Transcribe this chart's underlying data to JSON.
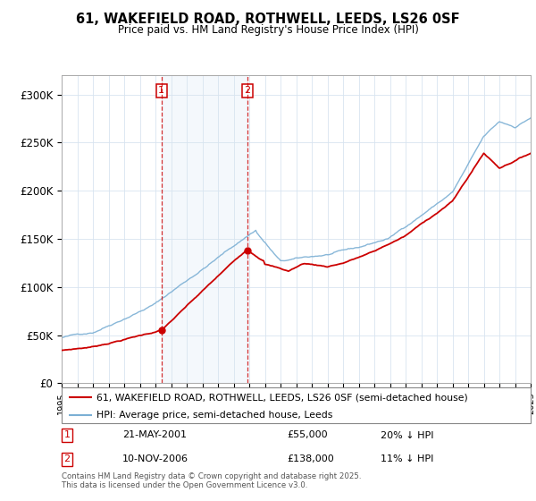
{
  "title": "61, WAKEFIELD ROAD, ROTHWELL, LEEDS, LS26 0SF",
  "subtitle": "Price paid vs. HM Land Registry's House Price Index (HPI)",
  "background_color": "#ffffff",
  "grid_color": "#d8e4f0",
  "hpi_line_color": "#7bafd4",
  "price_line_color": "#cc0000",
  "sale1": {
    "date": "21-MAY-2001",
    "price": 55000,
    "hpi_pct": "20% ↓ HPI",
    "label": "1"
  },
  "sale2": {
    "date": "10-NOV-2006",
    "price": 138000,
    "hpi_pct": "11% ↓ HPI",
    "label": "2"
  },
  "legend_entries": [
    "61, WAKEFIELD ROAD, ROTHWELL, LEEDS, LS26 0SF (semi-detached house)",
    "HPI: Average price, semi-detached house, Leeds"
  ],
  "footer": "Contains HM Land Registry data © Crown copyright and database right 2025.\nThis data is licensed under the Open Government Licence v3.0.",
  "ylim": [
    0,
    320000
  ],
  "yticks": [
    0,
    50000,
    100000,
    150000,
    200000,
    250000,
    300000
  ],
  "ytick_labels": [
    "£0",
    "£50K",
    "£100K",
    "£150K",
    "£200K",
    "£250K",
    "£300K"
  ],
  "xstart": 1995,
  "xend": 2025,
  "sale1_x": 2001.386,
  "sale2_x": 2006.858
}
